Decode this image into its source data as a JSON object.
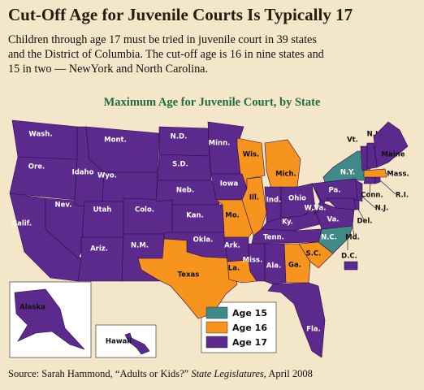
{
  "header": {
    "title": "Cut-Off Age for Juvenile Courts Is Typically 17",
    "subtitle_lines": [
      "Children through age 17 must be tried in juvenile court in 39 states",
      "and the District of Columbia. The cut-off age is 16 in nine states and",
      "15 in two — NewYork and North Carolina."
    ]
  },
  "map": {
    "title": "Maximum Age for Juvenile Court, by State",
    "legend": [
      {
        "label": "Age 15",
        "color": "#3f8a86"
      },
      {
        "label": "Age 16",
        "color": "#f7941d"
      },
      {
        "label": "Age 17",
        "color": "#5b2a8c"
      }
    ],
    "states": [
      {
        "label": "Wash.",
        "color": "#5b2a8c"
      },
      {
        "label": "Ore.",
        "color": "#5b2a8c"
      },
      {
        "label": "Calif.",
        "color": "#5b2a8c"
      },
      {
        "label": "Nev.",
        "color": "#5b2a8c"
      },
      {
        "label": "Idaho",
        "color": "#5b2a8c"
      },
      {
        "label": "Mont.",
        "color": "#5b2a8c"
      },
      {
        "label": "Wyo.",
        "color": "#5b2a8c"
      },
      {
        "label": "Utah",
        "color": "#5b2a8c"
      },
      {
        "label": "Ariz.",
        "color": "#5b2a8c"
      },
      {
        "label": "Colo.",
        "color": "#5b2a8c"
      },
      {
        "label": "N.M.",
        "color": "#5b2a8c"
      },
      {
        "label": "N.D.",
        "color": "#5b2a8c"
      },
      {
        "label": "S.D.",
        "color": "#5b2a8c"
      },
      {
        "label": "Neb.",
        "color": "#5b2a8c"
      },
      {
        "label": "Kan.",
        "color": "#5b2a8c"
      },
      {
        "label": "Okla.",
        "color": "#5b2a8c"
      },
      {
        "label": "Texas",
        "color": "#f7941d"
      },
      {
        "label": "Minn.",
        "color": "#5b2a8c"
      },
      {
        "label": "Iowa",
        "color": "#5b2a8c"
      },
      {
        "label": "Mo.",
        "color": "#f7941d"
      },
      {
        "label": "Ark.",
        "color": "#5b2a8c"
      },
      {
        "label": "La.",
        "color": "#f7941d"
      },
      {
        "label": "Wis.",
        "color": "#f7941d"
      },
      {
        "label": "Ill.",
        "color": "#f7941d"
      },
      {
        "label": "Mich.",
        "color": "#f7941d"
      },
      {
        "label": "Ind.",
        "color": "#5b2a8c"
      },
      {
        "label": "Ohio",
        "color": "#5b2a8c"
      },
      {
        "label": "Ky.",
        "color": "#5b2a8c"
      },
      {
        "label": "Tenn.",
        "color": "#5b2a8c"
      },
      {
        "label": "Miss.",
        "color": "#5b2a8c"
      },
      {
        "label": "Ala.",
        "color": "#5b2a8c"
      },
      {
        "label": "Ga.",
        "color": "#f7941d"
      },
      {
        "label": "Fla.",
        "color": "#5b2a8c"
      },
      {
        "label": "S.C.",
        "color": "#f7941d"
      },
      {
        "label": "N.C.",
        "color": "#3f8a86"
      },
      {
        "label": "Va.",
        "color": "#5b2a8c"
      },
      {
        "label": "W.Va.",
        "color": "#5b2a8c"
      },
      {
        "label": "Pa.",
        "color": "#5b2a8c"
      },
      {
        "label": "N.Y.",
        "color": "#3f8a86"
      },
      {
        "label": "Md.",
        "color": "#5b2a8c"
      },
      {
        "label": "Del.",
        "color": "#5b2a8c"
      },
      {
        "label": "N.J.",
        "color": "#5b2a8c"
      },
      {
        "label": "Conn.",
        "color": "#5b2a8c"
      },
      {
        "label": "R.I.",
        "color": "#5b2a8c"
      },
      {
        "label": "Mass.",
        "color": "#f7941d"
      },
      {
        "label": "Vt.",
        "color": "#5b2a8c"
      },
      {
        "label": "N.H.",
        "color": "#5b2a8c"
      },
      {
        "label": "Maine",
        "color": "#5b2a8c"
      },
      {
        "label": "D.C.",
        "color": "#5b2a8c"
      },
      {
        "label": "Alaska",
        "color": "#5b2a8c"
      },
      {
        "label": "Hawaii",
        "color": "#5b2a8c"
      }
    ]
  },
  "source": {
    "prefix": "Source: Sarah Hammond, “Adults or Kids?” ",
    "italic": "State Legislatures",
    "suffix": ", April 2008"
  }
}
